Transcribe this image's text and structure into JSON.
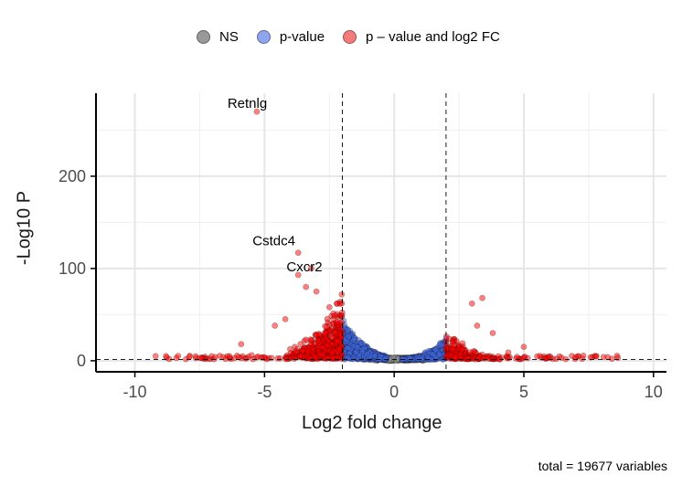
{
  "chart_data": {
    "type": "scatter",
    "title": "",
    "xlabel": "Log2 fold change",
    "ylabel": "-Log10 P",
    "xlim": [
      -11.5,
      10.5
    ],
    "ylim": [
      -12,
      290
    ],
    "x_ticks": [
      "-10",
      "-5",
      "0",
      "5",
      "10"
    ],
    "x_tick_values": [
      -10,
      -5,
      0,
      5,
      10
    ],
    "y_ticks": [
      "0",
      "100",
      "200"
    ],
    "y_tick_values": [
      0,
      100,
      200
    ],
    "grid": true,
    "legend_position": "top",
    "thresholds": {
      "log2fc": [
        -2,
        2
      ],
      "neg_log10_p": 1.3
    },
    "caption": "total = 19677 variables",
    "series": [
      {
        "name": "NS",
        "color": "#999999"
      },
      {
        "name": "p-value",
        "color": "#4169E1"
      },
      {
        "name": "p – value and log2 FC",
        "color": "#FF0000"
      }
    ],
    "labeled_points": [
      {
        "label": "Retnlg",
        "x": -5.3,
        "y": 270
      },
      {
        "label": "Cstdc4",
        "x": -3.7,
        "y": 117
      },
      {
        "label": "Cxcr2",
        "x": -3.2,
        "y": 100
      }
    ],
    "highlighted_red_points": [
      {
        "x": -9.2,
        "y": 5
      },
      {
        "x": -8.8,
        "y": 5
      },
      {
        "x": -8.4,
        "y": 3
      },
      {
        "x": -7.9,
        "y": 4
      },
      {
        "x": -7.5,
        "y": 3
      },
      {
        "x": -6.9,
        "y": 4
      },
      {
        "x": -6.5,
        "y": 2
      },
      {
        "x": -5.9,
        "y": 18
      },
      {
        "x": -5.5,
        "y": 6
      },
      {
        "x": -4.6,
        "y": 38
      },
      {
        "x": -4.2,
        "y": 45
      },
      {
        "x": -3.7,
        "y": 93
      },
      {
        "x": -3.4,
        "y": 80
      },
      {
        "x": -3.0,
        "y": 75
      },
      {
        "x": -2.5,
        "y": 58
      },
      {
        "x": -2.2,
        "y": 42
      },
      {
        "x": 2.3,
        "y": 17
      },
      {
        "x": 2.6,
        "y": 12
      },
      {
        "x": 3.0,
        "y": 62
      },
      {
        "x": 3.4,
        "y": 68
      },
      {
        "x": 3.2,
        "y": 38
      },
      {
        "x": 3.8,
        "y": 30
      },
      {
        "x": 4.4,
        "y": 9
      },
      {
        "x": 5.0,
        "y": 15
      },
      {
        "x": 6.0,
        "y": 3
      },
      {
        "x": 7.0,
        "y": 4
      },
      {
        "x": 7.8,
        "y": 5
      }
    ]
  }
}
